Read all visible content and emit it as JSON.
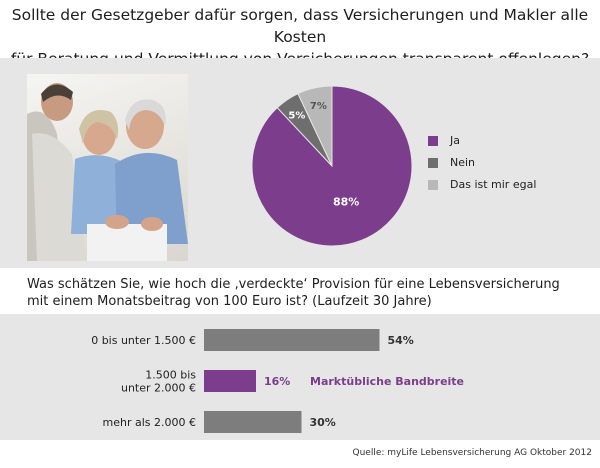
{
  "title_line1": "Sollte der Gesetzgeber dafür sorgen, dass Versicherungen und Makler alle Kosten",
  "title_line2": "für Beratung und Vermittlung von Versicherungen transparent offenlegen?",
  "question2_line1": "Was schätzen Sie, wie hoch die ‚verdeckte‘ Provision für eine Lebensversicherung",
  "question2_line2": "mit einem Monatsbeitrag von 100 Euro ist? (Laufzeit 30 Jahre)",
  "source": "Quelle: myLife Lebensversicherung AG  Oktober 2012",
  "photo_icon": "photo-advisor-couple",
  "chart_data": [
    {
      "type": "pie",
      "title": "",
      "slices": [
        {
          "label": "Ja",
          "value": 88,
          "display": "88%",
          "color": "#7b3d8c"
        },
        {
          "label": "Nein",
          "value": 5,
          "display": "5%",
          "color": "#6e6e6e"
        },
        {
          "label": "Das ist mir egal",
          "value": 7,
          "display": "7%",
          "color": "#b8b8b8"
        }
      ],
      "legend_position": "right"
    },
    {
      "type": "bar",
      "orientation": "horizontal",
      "title": "",
      "categories": [
        [
          "0 bis unter 1.500 €"
        ],
        [
          "1.500 bis",
          "unter 2.000 €"
        ],
        [
          "mehr als 2.000 €"
        ]
      ],
      "values": [
        54,
        16,
        30
      ],
      "value_labels": [
        "54%",
        "16%",
        "30%"
      ],
      "colors": [
        "#7d7d7d",
        "#7b3d8c",
        "#7d7d7d"
      ],
      "annotation": "Marktübliche Bandbreite",
      "annotation_color": "#7b3d8c",
      "xlim": [
        0,
        100
      ],
      "grid": false
    }
  ]
}
